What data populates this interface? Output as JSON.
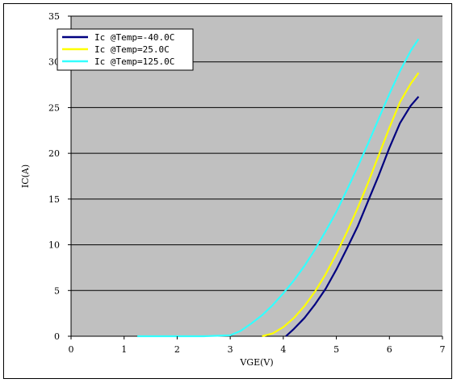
{
  "chart_data": {
    "type": "line",
    "xlabel": "VGE(V)",
    "ylabel": "IC(A)",
    "xlim": [
      0,
      7
    ],
    "ylim": [
      0,
      35
    ],
    "x_ticks": [
      "0",
      "1",
      "2",
      "3",
      "4",
      "5",
      "6",
      "7"
    ],
    "y_ticks": [
      "0",
      "5",
      "10",
      "15",
      "20",
      "25",
      "30",
      "35"
    ],
    "grid": "horizontal",
    "plot_background": "#c0c0c0",
    "legend_position": "top-left",
    "series": [
      {
        "name": "Ic  @Temp=-40.0C",
        "color": "#000080",
        "x": [
          4.05,
          4.2,
          4.4,
          4.6,
          4.8,
          5.0,
          5.2,
          5.4,
          5.6,
          5.8,
          6.0,
          6.2,
          6.4,
          6.55
        ],
        "y": [
          0.0,
          0.8,
          2.0,
          3.5,
          5.2,
          7.3,
          9.6,
          12.0,
          14.8,
          17.6,
          20.6,
          23.3,
          25.2,
          26.2
        ]
      },
      {
        "name": "Ic  @Temp=25.0C",
        "color": "#ffff00",
        "x": [
          3.6,
          3.8,
          4.0,
          4.2,
          4.4,
          4.6,
          4.8,
          5.0,
          5.2,
          5.4,
          5.6,
          5.8,
          6.0,
          6.2,
          6.4,
          6.55
        ],
        "y": [
          0.0,
          0.3,
          1.0,
          2.0,
          3.3,
          4.9,
          6.8,
          9.0,
          11.4,
          14.0,
          16.8,
          19.8,
          22.8,
          25.6,
          27.6,
          28.8
        ]
      },
      {
        "name": "Ic  @Temp=125.0C",
        "color": "#33ffff",
        "x": [
          1.25,
          2.0,
          2.5,
          3.0,
          3.2,
          3.4,
          3.6,
          3.8,
          4.0,
          4.2,
          4.4,
          4.6,
          4.8,
          5.0,
          5.2,
          5.4,
          5.6,
          5.8,
          6.0,
          6.2,
          6.4,
          6.55
        ],
        "y": [
          0.0,
          0.0,
          0.0,
          0.1,
          0.6,
          1.4,
          2.3,
          3.4,
          4.7,
          6.1,
          7.7,
          9.5,
          11.5,
          13.6,
          16.0,
          18.5,
          21.1,
          23.8,
          26.5,
          29.0,
          31.2,
          32.5
        ]
      }
    ]
  }
}
